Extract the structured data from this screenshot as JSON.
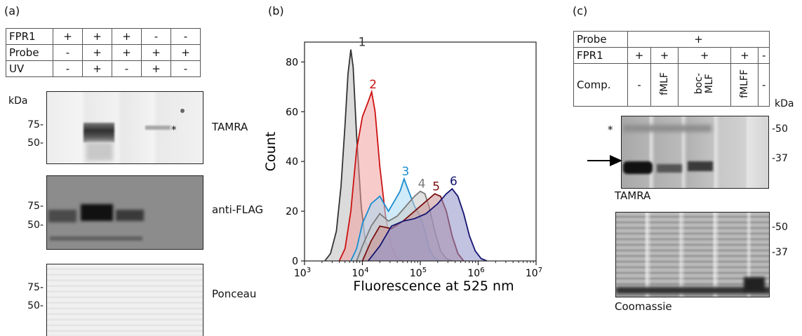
{
  "panel_a": {
    "label": "(a)",
    "rows": [
      {
        "name": "FPR1",
        "cells": [
          "+",
          "+",
          "+",
          "-",
          "-"
        ]
      },
      {
        "name": "Probe",
        "cells": [
          "-",
          "+",
          "+",
          "+",
          "+"
        ]
      },
      {
        "name": "UV",
        "cells": [
          "-",
          "+",
          "-",
          "+",
          "-"
        ]
      }
    ],
    "kda": "kDa",
    "blots": [
      {
        "name": "TAMRA",
        "markers": [
          "75-",
          "50-"
        ]
      },
      {
        "name": "anti-FLAG",
        "markers": [
          "75-",
          "50-"
        ]
      },
      {
        "name": "Ponceau",
        "markers": [
          "75-",
          "50-"
        ]
      }
    ],
    "asterisk": "*"
  },
  "panel_b": {
    "label": "(b)",
    "chart_data": {
      "type": "area",
      "title": "",
      "xlabel": "Fluorescence at 525 nm",
      "ylabel": "Count",
      "xscale": "log",
      "xlim": [
        1000,
        10000000
      ],
      "ylim": [
        0,
        88
      ],
      "x_ticks": [
        "10",
        "10",
        "10",
        "10",
        "10"
      ],
      "x_tick_exponents": [
        "3",
        "4",
        "5",
        "6",
        "7"
      ],
      "y_ticks": [
        "0",
        "20",
        "40",
        "60",
        "80"
      ],
      "grid": false,
      "series": [
        {
          "name": "1",
          "color": "#333333",
          "fill": "#bdbdbd",
          "points": [
            [
              3.35,
              0
            ],
            [
              3.45,
              3
            ],
            [
              3.55,
              12
            ],
            [
              3.63,
              30
            ],
            [
              3.7,
              55
            ],
            [
              3.75,
              75
            ],
            [
              3.8,
              85
            ],
            [
              3.84,
              78
            ],
            [
              3.9,
              50
            ],
            [
              3.98,
              22
            ],
            [
              4.05,
              8
            ],
            [
              4.15,
              2
            ],
            [
              4.3,
              0
            ]
          ]
        },
        {
          "name": "2",
          "color": "#cc1111",
          "fill": "#f2a0a0",
          "points": [
            [
              3.6,
              0
            ],
            [
              3.7,
              5
            ],
            [
              3.8,
              20
            ],
            [
              3.9,
              45
            ],
            [
              4.0,
              58
            ],
            [
              4.1,
              64
            ],
            [
              4.16,
              68
            ],
            [
              4.22,
              60
            ],
            [
              4.3,
              38
            ],
            [
              4.4,
              18
            ],
            [
              4.5,
              6
            ],
            [
              4.6,
              1
            ],
            [
              4.7,
              0
            ]
          ]
        },
        {
          "name": "3",
          "color": "#1a8ccf",
          "fill": "#a8d8f2",
          "points": [
            [
              3.8,
              0
            ],
            [
              3.9,
              5
            ],
            [
              4.0,
              15
            ],
            [
              4.15,
              23
            ],
            [
              4.3,
              26
            ],
            [
              4.45,
              20
            ],
            [
              4.55,
              24
            ],
            [
              4.65,
              28
            ],
            [
              4.72,
              33
            ],
            [
              4.8,
              28
            ],
            [
              4.9,
              22
            ],
            [
              5.0,
              18
            ],
            [
              5.08,
              12
            ],
            [
              5.15,
              5
            ],
            [
              5.25,
              1
            ],
            [
              5.35,
              0
            ]
          ]
        },
        {
          "name": "4",
          "color": "#7a7a7a",
          "fill": "#c8c8c8",
          "points": [
            [
              3.9,
              0
            ],
            [
              4.0,
              6
            ],
            [
              4.15,
              14
            ],
            [
              4.3,
              19
            ],
            [
              4.45,
              16
            ],
            [
              4.6,
              18
            ],
            [
              4.75,
              22
            ],
            [
              4.9,
              26
            ],
            [
              5.0,
              28
            ],
            [
              5.08,
              27
            ],
            [
              5.15,
              22
            ],
            [
              5.25,
              12
            ],
            [
              5.35,
              4
            ],
            [
              5.45,
              1
            ],
            [
              5.55,
              0
            ]
          ]
        },
        {
          "name": "5",
          "color": "#7a1010",
          "fill": "#c89090",
          "points": [
            [
              4.0,
              0
            ],
            [
              4.15,
              8
            ],
            [
              4.3,
              14
            ],
            [
              4.5,
              13
            ],
            [
              4.7,
              16
            ],
            [
              4.9,
              20
            ],
            [
              5.1,
              24
            ],
            [
              5.25,
              27
            ],
            [
              5.35,
              26
            ],
            [
              5.45,
              20
            ],
            [
              5.55,
              10
            ],
            [
              5.65,
              3
            ],
            [
              5.75,
              0
            ]
          ]
        },
        {
          "name": "6",
          "color": "#121270",
          "fill": "#9090c8",
          "points": [
            [
              4.1,
              0
            ],
            [
              4.3,
              6
            ],
            [
              4.5,
              14
            ],
            [
              4.7,
              16
            ],
            [
              4.9,
              17
            ],
            [
              5.1,
              19
            ],
            [
              5.3,
              23
            ],
            [
              5.45,
              27
            ],
            [
              5.55,
              29
            ],
            [
              5.65,
              26
            ],
            [
              5.75,
              19
            ],
            [
              5.85,
              10
            ],
            [
              5.95,
              4
            ],
            [
              6.05,
              1
            ],
            [
              6.15,
              0
            ]
          ]
        }
      ]
    }
  },
  "panel_c": {
    "label": "(c)",
    "probe": {
      "name": "Probe",
      "value": "+"
    },
    "fpr1": {
      "name": "FPR1",
      "cells": [
        "+",
        "+",
        "+",
        "+",
        "-"
      ]
    },
    "comp": {
      "name": "Comp.",
      "cells": [
        "-",
        "fMLF",
        "boc-\nMLF",
        "fMLFF",
        "-"
      ]
    },
    "kda": "kDa",
    "blots": [
      {
        "name": "TAMRA",
        "markers": [
          "-50",
          "-37"
        ]
      },
      {
        "name": "Coomassie",
        "markers": [
          "-50",
          "-37"
        ]
      }
    ],
    "asterisk": "*"
  }
}
